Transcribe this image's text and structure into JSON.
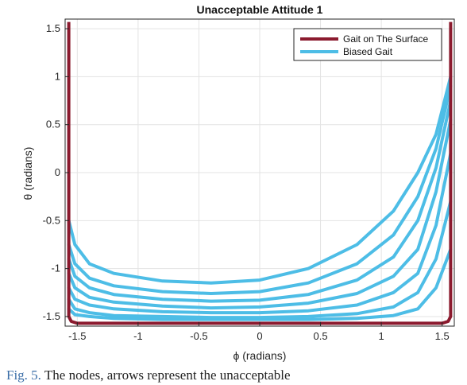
{
  "chart_data": {
    "type": "line",
    "title": "Unacceptable Attitude 1",
    "xlabel": "ϕ (radians)",
    "ylabel": "θ (radians)",
    "xlim": [
      -1.6,
      1.6
    ],
    "ylim": [
      -1.6,
      1.6
    ],
    "x_ticks": [
      -1.5,
      -1,
      -0.5,
      0,
      0.5,
      1,
      1.5
    ],
    "x_tick_labels": [
      "-1.5",
      "-1",
      "-0.5",
      "0",
      "0.5",
      "1",
      "1.5"
    ],
    "y_ticks": [
      -1.5,
      -1,
      -0.5,
      0,
      0.5,
      1,
      1.5
    ],
    "y_tick_labels": [
      "-1.5",
      "-1",
      "-0.5",
      "0",
      "0.5",
      "1",
      "1.5"
    ],
    "grid": true,
    "legend_position": "top-right",
    "series": [
      {
        "name": "Gait on The Surface",
        "color": "#8b1a2e",
        "x": [
          -1.57,
          -1.57,
          -1.57,
          -1.55,
          -1.5,
          -1.0,
          0.0,
          1.0,
          1.5,
          1.55,
          1.57,
          1.57,
          1.57
        ],
        "y": [
          1.57,
          0.0,
          -1.5,
          -1.55,
          -1.57,
          -1.57,
          -1.57,
          -1.57,
          -1.57,
          -1.55,
          -1.5,
          0.0,
          1.57
        ]
      },
      {
        "name": "Biased Gait",
        "color": "#4dbde6",
        "loops": [
          {
            "x": [
              -1.57,
              -1.52,
              -1.4,
              -1.2,
              -0.8,
              -0.4,
              0.0,
              0.4,
              0.8,
              1.1,
              1.3,
              1.45,
              1.57
            ],
            "y": [
              -0.5,
              -0.75,
              -0.95,
              -1.05,
              -1.13,
              -1.15,
              -1.12,
              -1.0,
              -0.75,
              -0.4,
              0.0,
              0.4,
              1.0
            ]
          },
          {
            "x": [
              -1.57,
              -1.52,
              -1.4,
              -1.2,
              -0.8,
              -0.4,
              0.0,
              0.4,
              0.8,
              1.1,
              1.3,
              1.45,
              1.57
            ],
            "y": [
              -0.75,
              -0.95,
              -1.1,
              -1.18,
              -1.24,
              -1.26,
              -1.24,
              -1.15,
              -0.95,
              -0.65,
              -0.25,
              0.25,
              0.9
            ]
          },
          {
            "x": [
              -1.57,
              -1.52,
              -1.4,
              -1.2,
              -0.8,
              -0.4,
              0.0,
              0.4,
              0.8,
              1.1,
              1.3,
              1.45,
              1.57
            ],
            "y": [
              -0.9,
              -1.08,
              -1.2,
              -1.27,
              -1.32,
              -1.34,
              -1.33,
              -1.27,
              -1.12,
              -0.88,
              -0.5,
              0.05,
              0.75
            ]
          },
          {
            "x": [
              -1.57,
              -1.52,
              -1.4,
              -1.2,
              -0.8,
              -0.4,
              0.0,
              0.4,
              0.8,
              1.1,
              1.3,
              1.45,
              1.57
            ],
            "y": [
              -1.05,
              -1.2,
              -1.3,
              -1.35,
              -1.39,
              -1.41,
              -1.4,
              -1.36,
              -1.26,
              -1.08,
              -0.8,
              -0.2,
              0.55
            ]
          },
          {
            "x": [
              -1.57,
              -1.52,
              -1.4,
              -1.2,
              -0.8,
              -0.4,
              0.0,
              0.4,
              0.8,
              1.1,
              1.3,
              1.45,
              1.57
            ],
            "y": [
              -1.2,
              -1.32,
              -1.38,
              -1.42,
              -1.45,
              -1.46,
              -1.46,
              -1.44,
              -1.38,
              -1.25,
              -1.05,
              -0.55,
              0.2
            ]
          },
          {
            "x": [
              -1.57,
              -1.52,
              -1.4,
              -1.2,
              -0.8,
              -0.4,
              0.0,
              0.4,
              0.8,
              1.1,
              1.3,
              1.45,
              1.57
            ],
            "y": [
              -1.32,
              -1.42,
              -1.46,
              -1.49,
              -1.5,
              -1.51,
              -1.51,
              -1.5,
              -1.47,
              -1.4,
              -1.25,
              -0.9,
              -0.3
            ]
          },
          {
            "x": [
              -1.57,
              -1.52,
              -1.4,
              -1.2,
              -0.8,
              -0.4,
              0.0,
              0.4,
              0.8,
              1.1,
              1.3,
              1.45,
              1.57
            ],
            "y": [
              -1.42,
              -1.48,
              -1.5,
              -1.52,
              -1.53,
              -1.53,
              -1.53,
              -1.53,
              -1.52,
              -1.49,
              -1.42,
              -1.2,
              -0.8
            ]
          }
        ]
      }
    ]
  },
  "caption": {
    "figure_label": "Fig. 5.",
    "text": "The nodes, arrows represent the unacceptable"
  }
}
